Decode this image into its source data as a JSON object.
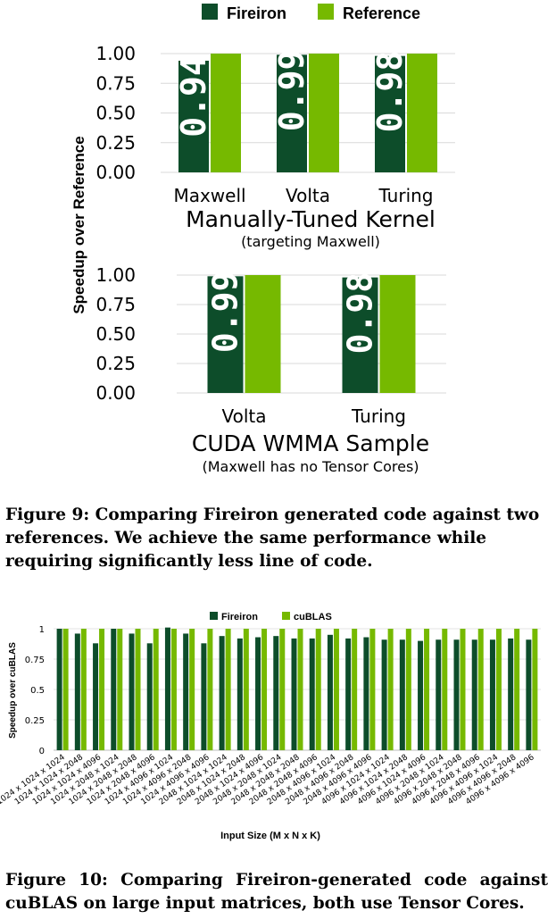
{
  "colors": {
    "fireiron": "#0d4d2a",
    "reference": "#76b900",
    "grid": "#d9d9d9"
  },
  "legend": {
    "fireiron": "Fireiron",
    "reference": "Reference"
  },
  "ylabel": "Speedup over Reference",
  "chart_data": [
    {
      "type": "bar",
      "title": "Manually-Tuned Kernel",
      "subtitle": "(targeting Maxwell)",
      "categories": [
        "Maxwell",
        "Volta",
        "Turing"
      ],
      "series": [
        {
          "name": "Fireiron",
          "values": [
            0.94,
            0.99,
            0.98
          ],
          "labels": [
            "0.94",
            "0.99",
            "0.98"
          ]
        },
        {
          "name": "Reference",
          "values": [
            1.0,
            1.0,
            1.0
          ]
        }
      ],
      "yticks": [
        "1.00",
        "0.75",
        "0.50",
        "0.25",
        "0.00"
      ],
      "ylim": [
        0,
        1
      ]
    },
    {
      "type": "bar",
      "title": "CUDA WMMA Sample",
      "subtitle": "(Maxwell has no Tensor Cores)",
      "categories": [
        "Volta",
        "Turing"
      ],
      "series": [
        {
          "name": "Fireiron",
          "values": [
            0.99,
            0.98
          ],
          "labels": [
            "0.99",
            "0.98"
          ]
        },
        {
          "name": "Reference",
          "values": [
            1.0,
            1.0
          ]
        }
      ],
      "yticks": [
        "1.00",
        "0.75",
        "0.50",
        "0.25",
        "0.00"
      ],
      "ylim": [
        0,
        1
      ]
    },
    {
      "type": "bar",
      "xlabel": "Input Size (M x N x K)",
      "ylabel": "Speedup over cuBLAS",
      "legend": [
        "Fireiron",
        "cuBLAS"
      ],
      "categories": [
        "1024 x 1024 x 1024",
        "1024 x 1024 x 2048",
        "1024 x 1024 x 4096",
        "1024 x 2048 x 1024",
        "1024 x 2048 x 2048",
        "1024 x 2048 x 4096",
        "1024 x 4096 x 1024",
        "1024 x 4096 x 2048",
        "1024 x 4096 x 4096",
        "2048 x 1024 x 1024",
        "2048 x 1024 x 2048",
        "2048 x 1024 x 4096",
        "2048 x 2048 x 1024",
        "2048 x 2048 x 2048",
        "2048 x 2048 x 4096",
        "2048 x 4096 x 1024",
        "2048 x 4096 x 2048",
        "2048 x 4096 x 4096",
        "4096 x 1024 x 1024",
        "4096 x 1024 x 2048",
        "4096 x 1024 x 4096",
        "4096 x 2048 x 1024",
        "4096 x 2048 x 2048",
        "4096 x 2048 x 4096",
        "4096 x 4096 x 1024",
        "4096 x 4096 x 2048",
        "4096 x 4096 x 4096"
      ],
      "series": [
        {
          "name": "Fireiron",
          "values": [
            1.0,
            0.96,
            0.88,
            1.0,
            0.96,
            0.88,
            1.01,
            0.96,
            0.88,
            0.94,
            0.92,
            0.93,
            0.94,
            0.92,
            0.92,
            0.95,
            0.92,
            0.93,
            0.91,
            0.91,
            0.9,
            0.91,
            0.91,
            0.91,
            0.91,
            0.92,
            0.91
          ]
        },
        {
          "name": "cuBLAS",
          "values": [
            1,
            1,
            1,
            1,
            1,
            1,
            1,
            1,
            1,
            1,
            1,
            1,
            1,
            1,
            1,
            1,
            1,
            1,
            1,
            1,
            1,
            1,
            1,
            1,
            1,
            1,
            1
          ]
        }
      ],
      "yticks": [
        "1",
        "0.75",
        "0.5",
        "0.25",
        "0"
      ],
      "ylim": [
        0,
        1
      ]
    }
  ],
  "captions": {
    "fig9": "Figure 9: Comparing Fireiron generated code against two references. We achieve the same performance while requiring significantly less line of code.",
    "fig10": "Figure 10: Comparing Fireiron-generated code against cuBLAS on large input matrices, both use Tensor Cores."
  }
}
